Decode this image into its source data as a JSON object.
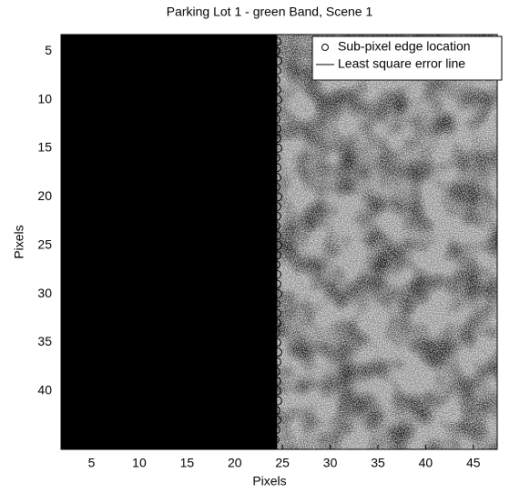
{
  "chart_data": {
    "type": "scatter",
    "title": "Parking Lot 1 - green Band, Scene 1",
    "x_label": "Pixels",
    "y_label": "Pixels",
    "xlim": [
      1.8,
      47.5
    ],
    "ylim": [
      3.3,
      46
    ],
    "y_reversed": true,
    "xticks": [
      5,
      10,
      15,
      20,
      25,
      30,
      35,
      40,
      45
    ],
    "yticks": [
      5,
      10,
      15,
      20,
      25,
      30,
      35,
      40
    ],
    "legend": "upper right",
    "series": [
      {
        "name": "Sub-pixel edge location",
        "marker": "circle",
        "color": "#000000",
        "x": [
          24.4,
          24.3,
          24.5,
          24.4,
          24.3,
          24.4,
          24.5,
          24.4,
          24.3,
          24.4,
          24.4,
          24.5,
          24.3,
          24.4,
          24.4,
          24.3,
          24.5,
          24.4,
          24.4,
          24.3,
          24.4,
          24.5,
          24.4,
          24.3,
          24.4,
          24.4,
          24.5,
          24.3,
          24.4,
          24.4,
          24.3,
          24.4,
          24.5,
          24.4,
          24.3,
          24.4,
          24.4,
          24.5,
          24.3,
          24.4,
          24.3,
          24.2
        ],
        "y": [
          4,
          5,
          6,
          7,
          8,
          9,
          10,
          11,
          12,
          13,
          14,
          15,
          16,
          17,
          18,
          19,
          20,
          21,
          22,
          23,
          24,
          25,
          26,
          27,
          28,
          29,
          30,
          31,
          32,
          33,
          34,
          35,
          36,
          37,
          38,
          39,
          40,
          41,
          42,
          43,
          44,
          45
        ]
      },
      {
        "name": "Least square error line",
        "marker": "line",
        "color": "#000000",
        "x": [
          24.4,
          24.4
        ],
        "y": [
          3.3,
          46
        ]
      }
    ]
  }
}
